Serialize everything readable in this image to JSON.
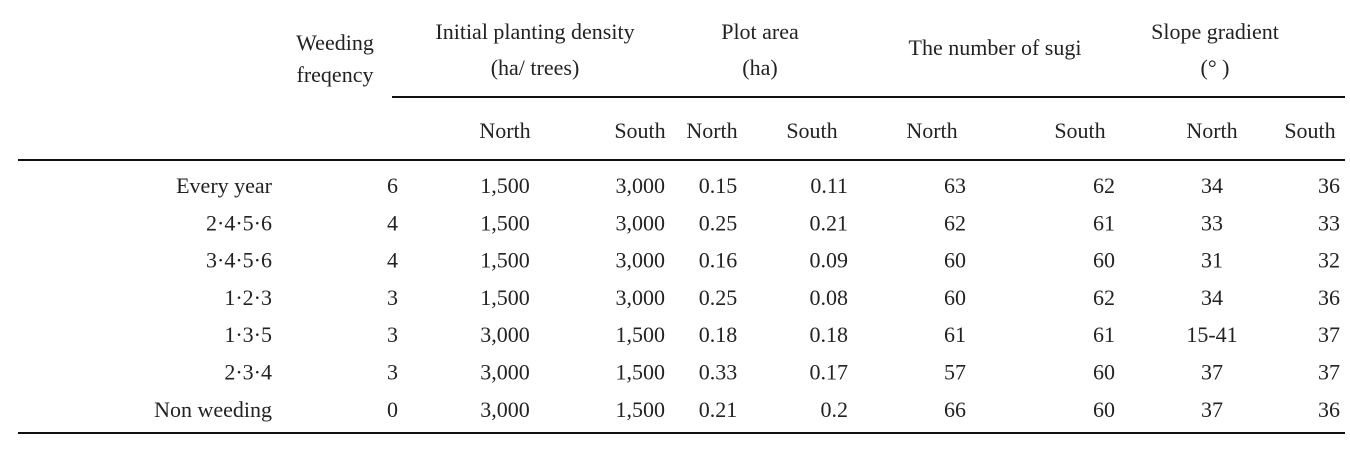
{
  "table": {
    "corner_header": [
      "Weeding",
      "freqency"
    ],
    "groups": [
      {
        "lines": [
          "Initial planting density",
          "(ha/ trees)"
        ]
      },
      {
        "lines": [
          "Plot area",
          "(ha)"
        ]
      },
      {
        "lines": [
          "The number of sugi"
        ]
      },
      {
        "lines": [
          "Slope gradient",
          "(°  )"
        ]
      }
    ],
    "subheaders": [
      "North",
      "South",
      "North",
      "South",
      "North",
      "South",
      "North",
      "South"
    ],
    "rows": [
      [
        "Every year",
        6,
        "1,500",
        "3,000",
        0.15,
        0.11,
        63,
        62,
        34,
        36
      ],
      [
        "2·4·5·6",
        4,
        "1,500",
        "3,000",
        0.25,
        0.21,
        62,
        61,
        33,
        33
      ],
      [
        "3·4·5·6",
        4,
        "1,500",
        "3,000",
        0.16,
        0.09,
        60,
        60,
        31,
        32
      ],
      [
        "1·2·3",
        3,
        "1,500",
        "3,000",
        0.25,
        0.08,
        60,
        62,
        34,
        36
      ],
      [
        "1·3·5",
        3,
        "3,000",
        "1,500",
        0.18,
        0.18,
        61,
        61,
        "15-41",
        37
      ],
      [
        "2·3·4",
        3,
        "3,000",
        "1,500",
        0.33,
        0.17,
        57,
        60,
        37,
        37
      ],
      [
        "Non weeding",
        0,
        "3,000",
        "1,500",
        0.21,
        0.2,
        66,
        60,
        37,
        36
      ]
    ]
  }
}
